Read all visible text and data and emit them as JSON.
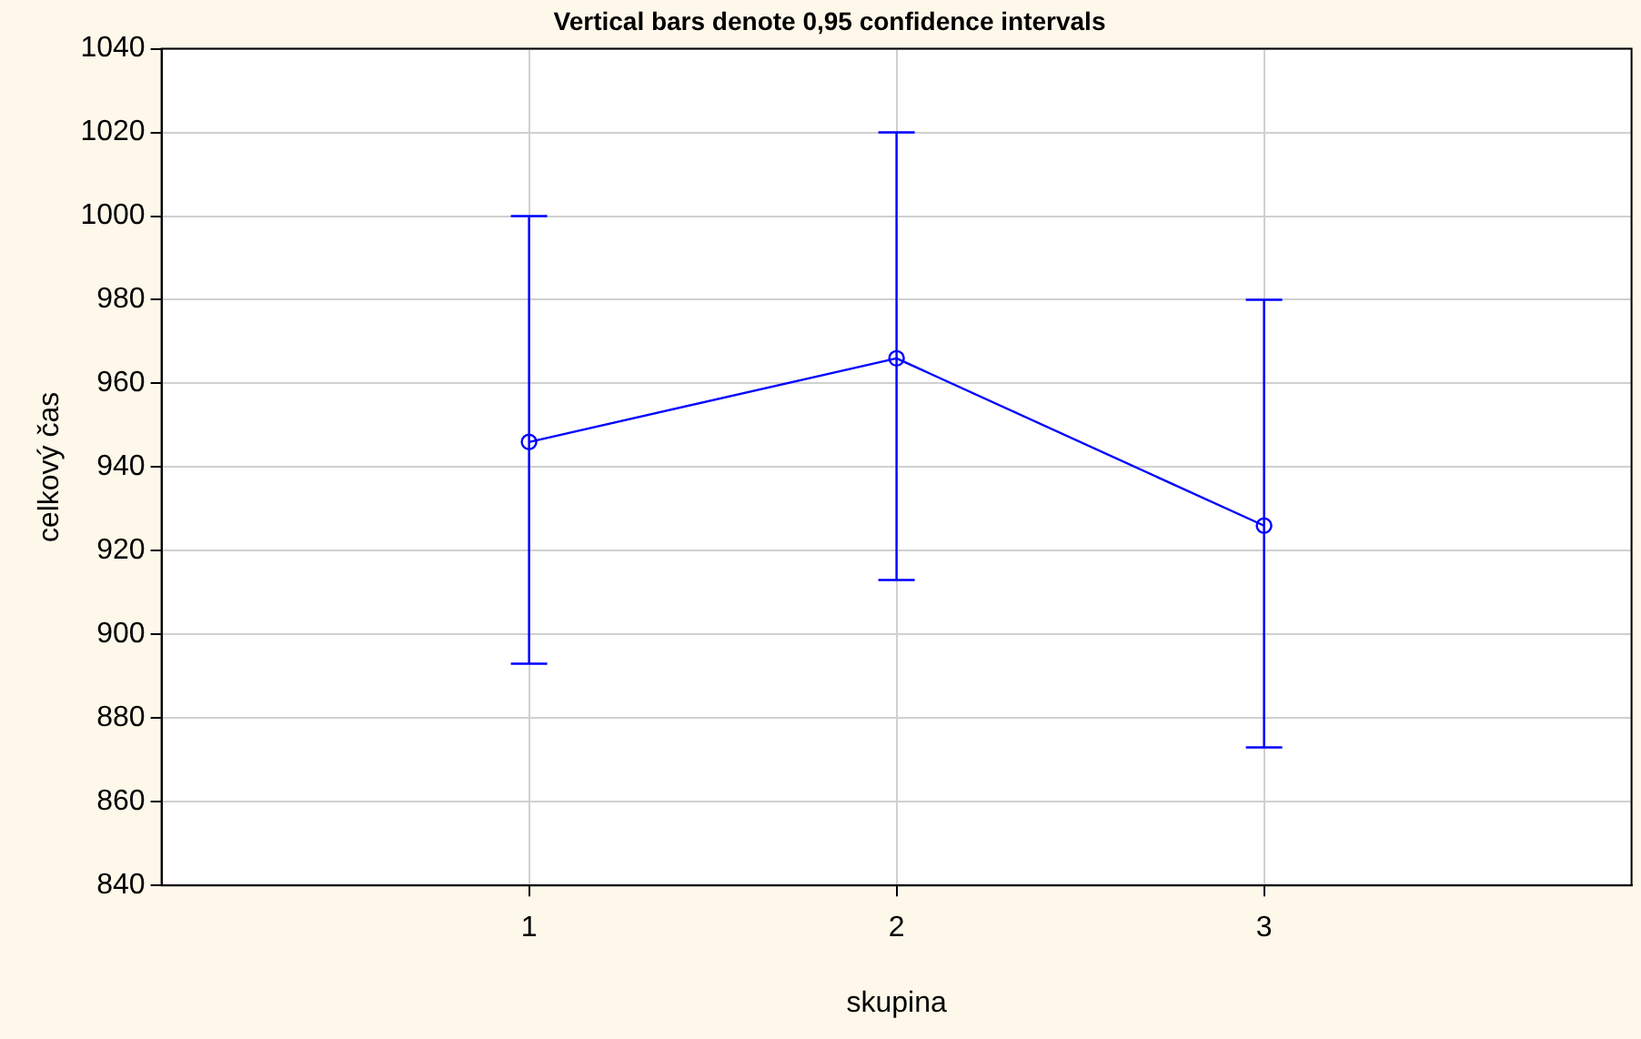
{
  "chart_data": {
    "type": "line",
    "title": "Vertical bars denote 0,95 confidence intervals",
    "xlabel": "skupina",
    "ylabel": "celkový čas",
    "x": [
      1,
      2,
      3
    ],
    "xlim": [
      0,
      4
    ],
    "xticks": [
      1,
      2,
      3
    ],
    "series": [
      {
        "color": "#0000ff",
        "values": [
          946,
          966,
          926
        ],
        "errors": [
          [
            893,
            1000
          ],
          [
            913,
            1020
          ],
          [
            873,
            980
          ]
        ]
      }
    ],
    "ylim": [
      840,
      1040
    ],
    "yticks": [
      840,
      860,
      880,
      900,
      920,
      940,
      960,
      980,
      1000,
      1020,
      1040
    ],
    "grid": true,
    "marker": "circle",
    "line_style": "solid"
  }
}
